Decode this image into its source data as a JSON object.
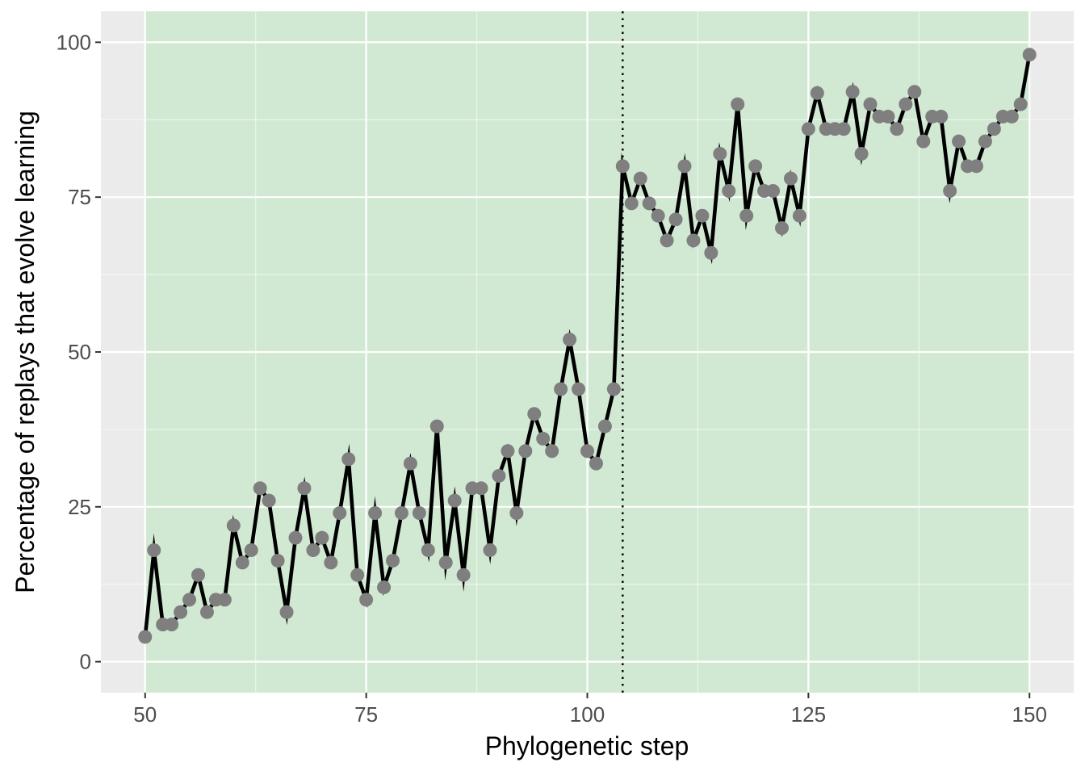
{
  "colors": {
    "panel_bg": "#ebebeb",
    "shaded_region": "#d1e9d3",
    "grid_major": "#ffffff",
    "line": "#000000",
    "point": "#7f7f7f",
    "tick_text": "#4d4d4d"
  },
  "chart_data": {
    "type": "line",
    "xlabel": "Phylogenetic step",
    "ylabel": "Percentage of replays that evolve learning",
    "xlim": [
      45,
      155
    ],
    "ylim": [
      -5,
      105
    ],
    "x_ticks": [
      50,
      75,
      100,
      125,
      150
    ],
    "y_ticks": [
      0,
      25,
      50,
      75,
      100
    ],
    "x_tick_labels": [
      "50",
      "75",
      "100",
      "125",
      "150"
    ],
    "y_tick_labels": [
      "0",
      "25",
      "50",
      "75",
      "100"
    ],
    "grid": true,
    "shaded_region": {
      "x": [
        50,
        150
      ]
    },
    "vline": {
      "x": 104,
      "style": "dotted"
    },
    "x": [
      50,
      51,
      52,
      53,
      54,
      55,
      56,
      57,
      58,
      59,
      60,
      61,
      62,
      63,
      64,
      65,
      66,
      67,
      68,
      69,
      70,
      71,
      72,
      73,
      74,
      75,
      76,
      77,
      78,
      79,
      80,
      81,
      82,
      83,
      84,
      85,
      86,
      87,
      88,
      89,
      90,
      91,
      92,
      93,
      94,
      95,
      96,
      97,
      98,
      99,
      100,
      101,
      102,
      103,
      104,
      105,
      106,
      107,
      108,
      109,
      110,
      111,
      112,
      113,
      114,
      115,
      116,
      117,
      118,
      119,
      120,
      121,
      122,
      123,
      124,
      125,
      126,
      127,
      128,
      129,
      130,
      131,
      132,
      133,
      134,
      135,
      136,
      137,
      138,
      139,
      140,
      141,
      142,
      143,
      144,
      145,
      146,
      147,
      148,
      149,
      150
    ],
    "y": [
      4,
      18,
      6,
      6,
      8,
      10,
      14,
      8,
      10,
      10,
      22,
      16,
      18,
      28,
      26,
      16.3,
      8,
      20,
      28,
      18,
      20,
      16,
      24,
      32.7,
      14,
      10,
      24,
      12,
      16.3,
      24,
      32,
      24,
      18,
      38,
      16,
      26,
      14,
      28,
      28,
      18,
      30,
      34,
      24,
      34,
      40,
      36,
      34,
      44,
      52,
      44,
      34,
      32,
      38,
      44,
      80,
      74,
      78,
      74,
      72,
      68,
      71.4,
      80,
      68,
      72,
      66,
      82,
      76,
      90,
      72,
      80,
      76,
      76,
      70,
      78,
      72,
      86,
      91.8,
      86,
      86,
      86,
      92,
      82,
      90,
      88,
      88,
      86,
      90,
      92,
      84,
      88,
      88,
      76,
      84,
      80,
      80,
      84,
      86,
      88,
      88,
      90,
      98
    ]
  }
}
